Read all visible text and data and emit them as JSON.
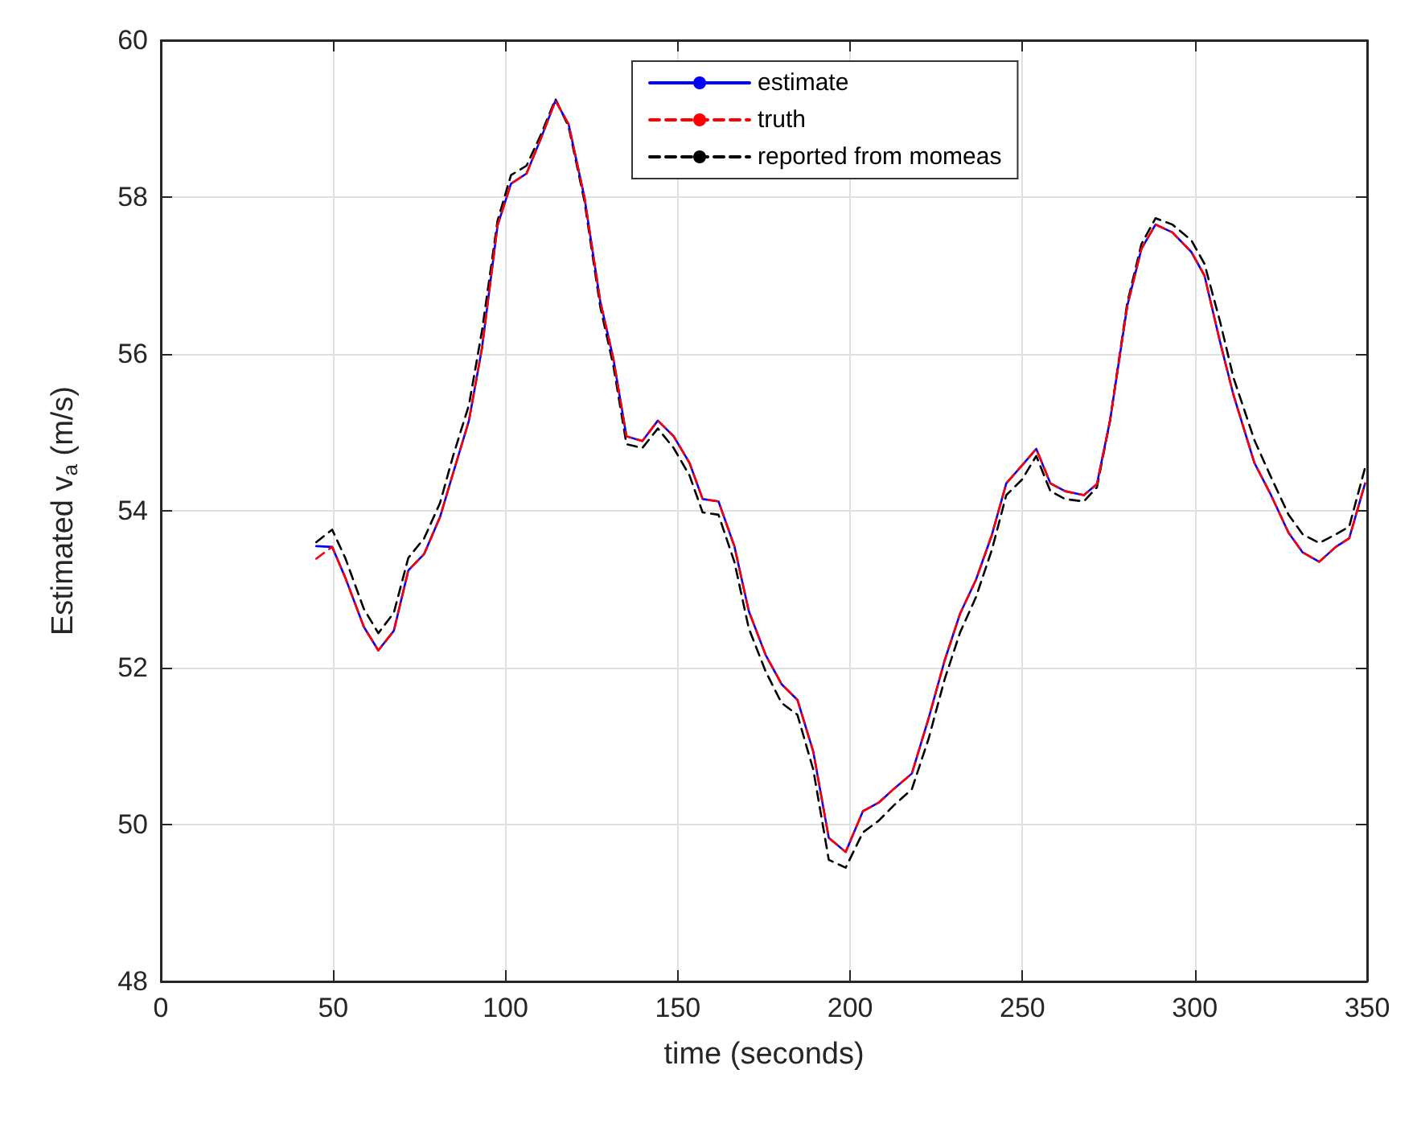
{
  "chart_data": {
    "type": "line",
    "xlabel": "time (seconds)",
    "ylabel": "Estimated v$_{a}$ (m/s)",
    "x": [
      45.1,
      49.7,
      53.5,
      58.9,
      63.1,
      67.6,
      71.8,
      76.4,
      81.0,
      84.8,
      89.4,
      93.2,
      97.7,
      101.6,
      106.1,
      110.3,
      114.5,
      118.3,
      122.9,
      127.5,
      131.3,
      135.1,
      139.7,
      144.2,
      148.8,
      153.4,
      157.2,
      161.8,
      166.4,
      170.6,
      175.5,
      180.1,
      184.7,
      189.3,
      193.8,
      198.7,
      203.7,
      208.3,
      212.8,
      217.9,
      222.8,
      227.4,
      231.9,
      236.5,
      241.1,
      245.3,
      249.9,
      254.0,
      258.1,
      262.4,
      267.8,
      271.6,
      275.4,
      280.4,
      284.5,
      288.6,
      293.5,
      299.0,
      302.8,
      307.4,
      311.2,
      317.3,
      321.9,
      327.2,
      331.3,
      336.1,
      340.9,
      344.8,
      349.4
    ],
    "series": [
      {
        "name": "estimate",
        "color": "#0000ff",
        "line_style": "solid",
        "values": [
          53.55,
          53.54,
          53.15,
          52.52,
          52.22,
          52.47,
          53.24,
          53.45,
          53.92,
          54.48,
          55.15,
          56.08,
          57.64,
          58.17,
          58.3,
          58.75,
          59.23,
          58.93,
          58.0,
          56.67,
          55.94,
          54.95,
          54.89,
          55.15,
          54.95,
          54.61,
          54.15,
          54.12,
          53.55,
          52.72,
          52.16,
          51.79,
          51.59,
          50.93,
          49.83,
          49.65,
          50.17,
          50.28,
          50.46,
          50.65,
          51.36,
          52.09,
          52.69,
          53.12,
          53.69,
          54.35,
          54.58,
          54.79,
          54.35,
          54.25,
          54.2,
          54.34,
          55.15,
          56.61,
          57.34,
          57.65,
          57.55,
          57.3,
          57.0,
          56.14,
          55.48,
          54.61,
          54.22,
          53.72,
          53.47,
          53.35,
          53.54,
          53.65,
          54.35
        ]
      },
      {
        "name": "truth",
        "color": "#ff0000",
        "line_style": "dashed",
        "values": [
          53.39,
          53.54,
          53.15,
          52.52,
          52.22,
          52.47,
          53.24,
          53.45,
          53.92,
          54.48,
          55.15,
          56.08,
          57.64,
          58.17,
          58.3,
          58.75,
          59.23,
          58.93,
          58.0,
          56.67,
          55.94,
          54.95,
          54.89,
          55.15,
          54.95,
          54.61,
          54.15,
          54.12,
          53.55,
          52.72,
          52.16,
          51.79,
          51.59,
          50.93,
          49.83,
          49.65,
          50.17,
          50.28,
          50.46,
          50.65,
          51.36,
          52.09,
          52.69,
          53.12,
          53.69,
          54.35,
          54.58,
          54.79,
          54.35,
          54.25,
          54.2,
          54.34,
          55.15,
          56.61,
          57.34,
          57.65,
          57.55,
          57.3,
          57.0,
          56.14,
          55.48,
          54.61,
          54.22,
          53.72,
          53.47,
          53.35,
          53.54,
          53.65,
          54.35
        ]
      },
      {
        "name": "reported from momeas",
        "color": "#000000",
        "line_style": "dashed",
        "values": [
          53.6,
          53.76,
          53.4,
          52.75,
          52.44,
          52.7,
          53.4,
          53.65,
          54.1,
          54.7,
          55.35,
          56.3,
          57.7,
          58.28,
          58.4,
          58.8,
          59.25,
          58.9,
          57.95,
          56.6,
          55.85,
          54.85,
          54.8,
          55.05,
          54.8,
          54.45,
          53.98,
          53.95,
          53.35,
          52.5,
          51.95,
          51.55,
          51.4,
          50.7,
          49.55,
          49.45,
          49.9,
          50.05,
          50.25,
          50.45,
          51.1,
          51.85,
          52.45,
          52.9,
          53.5,
          54.2,
          54.4,
          54.7,
          54.25,
          54.15,
          54.12,
          54.3,
          55.15,
          56.65,
          57.4,
          57.73,
          57.65,
          57.45,
          57.15,
          56.4,
          55.7,
          54.9,
          54.45,
          53.95,
          53.7,
          53.59,
          53.7,
          53.8,
          54.55
        ]
      }
    ],
    "xlim": [
      0,
      350
    ],
    "xticks": [
      0,
      50,
      100,
      150,
      200,
      250,
      300,
      350
    ],
    "ylim": [
      48,
      60
    ],
    "yticks": [
      48,
      50,
      52,
      54,
      56,
      58,
      60
    ],
    "grid": true,
    "legend": "top",
    "marker": "none"
  }
}
